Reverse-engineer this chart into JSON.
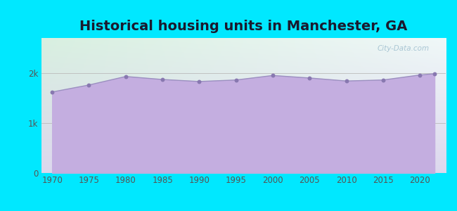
{
  "title": "Historical housing units in Manchester, GA",
  "title_fontsize": 14,
  "title_color": "#1a1a2e",
  "background_outer": "#00e8ff",
  "line_color": "#9b8fc0",
  "fill_color": "#c4aee0",
  "fill_alpha": 1.0,
  "marker_color": "#8878b0",
  "marker_size": 18,
  "years": [
    1970,
    1975,
    1980,
    1985,
    1990,
    1995,
    2000,
    2005,
    2010,
    2015,
    2020,
    2022
  ],
  "values": [
    1620,
    1760,
    1930,
    1870,
    1830,
    1860,
    1950,
    1900,
    1840,
    1860,
    1960,
    1985
  ],
  "yticks": [
    0,
    1000,
    2000
  ],
  "ytick_labels": [
    "0",
    "1k",
    "2k"
  ],
  "xticks": [
    1970,
    1975,
    1980,
    1985,
    1990,
    1995,
    2000,
    2005,
    2010,
    2015,
    2020
  ],
  "ylim": [
    0,
    2700
  ],
  "xlim": [
    1968.5,
    2023.5
  ],
  "grid_color": "#bbbbbb",
  "watermark": "City-Data.com",
  "bg_top_left": "#d8f0e0",
  "bg_top_right": "#f0f8f8",
  "bg_bottom": "#ddd8ee"
}
